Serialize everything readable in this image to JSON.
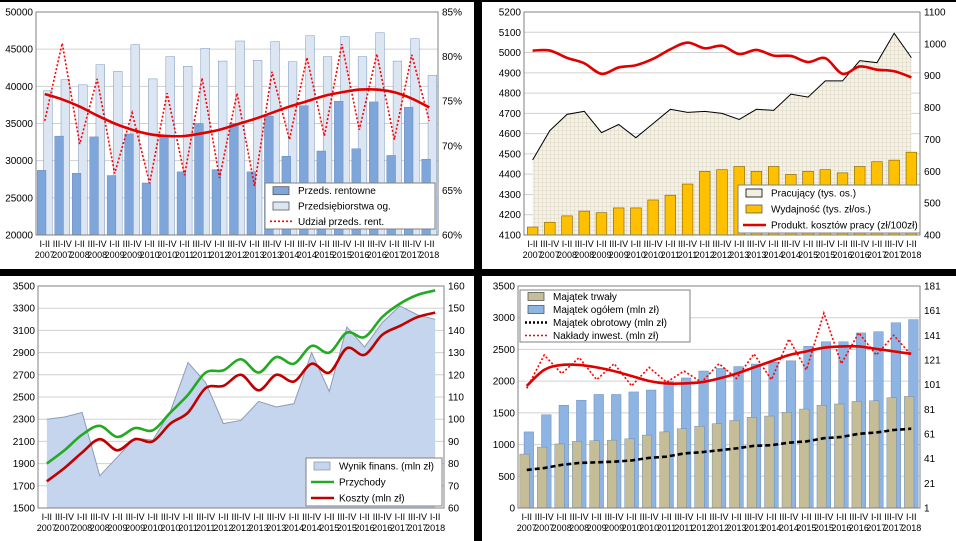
{
  "chart_data": [
    {
      "id": "p1",
      "type": "bar",
      "x_top": [
        "I-II",
        "III-IV",
        "I-II",
        "III-IV",
        "I-II",
        "III-IV",
        "I-II",
        "III-IV",
        "I-II",
        "III-IV",
        "I-II",
        "III-IV",
        "I-II",
        "III-IV",
        "I-II",
        "III-IV",
        "I-II",
        "III-IV",
        "I-II",
        "III-IV",
        "I-II",
        "III-IV",
        "I-II"
      ],
      "x_bottom": [
        "2007",
        "2007",
        "2008",
        "2008",
        "2009",
        "2009",
        "2010",
        "2010",
        "2011",
        "2011",
        "2012",
        "2012",
        "2013",
        "2013",
        "2014",
        "2014",
        "2015",
        "2015",
        "2016",
        "2016",
        "2017",
        "2017",
        "2018"
      ],
      "ylim": [
        20000,
        50000
      ],
      "y_ticks": [
        "20000",
        "25000",
        "30000",
        "35000",
        "40000",
        "45000",
        "50000"
      ],
      "y2lim": [
        60,
        85
      ],
      "y2_ticks": [
        "60%",
        "65%",
        "70%",
        "75%",
        "80%",
        "85%"
      ],
      "series": [
        {
          "name": "Przeds. rentowne",
          "kind": "bar",
          "color": "#7ea6da",
          "values": [
            28700,
            33300,
            28300,
            33200,
            28000,
            33600,
            27000,
            33400,
            28500,
            35000,
            28800,
            35000,
            28500,
            36000,
            30600,
            37400,
            31300,
            38000,
            31600,
            37900,
            30700,
            37200,
            30200
          ]
        },
        {
          "name": "Przedsiębiorstwa og.",
          "kind": "bar",
          "color": "#dce6f2",
          "values": [
            39400,
            40900,
            40200,
            42900,
            42000,
            45600,
            41000,
            44000,
            42700,
            45100,
            43400,
            46100,
            43500,
            46000,
            43300,
            46800,
            44000,
            46700,
            44000,
            47200,
            43400,
            46400,
            41500
          ]
        },
        {
          "name": "Udział przeds. rent.",
          "kind": "line",
          "color": "#ff0000",
          "dashed": true,
          "axis": "right",
          "values": [
            72.8,
            81.5,
            70.2,
            77.5,
            66.9,
            73.7,
            65.8,
            75.9,
            66.7,
            77.6,
            66.4,
            75.9,
            65.5,
            78.3,
            70.7,
            79.9,
            71.1,
            81.4,
            71.8,
            80.3,
            70.7,
            80.2,
            72.8
          ]
        },
        {
          "name": "trend",
          "kind": "line",
          "color": "#e00000",
          "thick": true,
          "axis": "right",
          "legend": false,
          "values": [
            75.8,
            75.2,
            74.4,
            73.4,
            72.5,
            71.8,
            71.3,
            71.1,
            71.1,
            71.4,
            71.8,
            72.4,
            73.0,
            73.7,
            74.4,
            75.0,
            75.6,
            76.0,
            76.3,
            76.3,
            76.0,
            75.3,
            74.3
          ]
        }
      ]
    },
    {
      "id": "p2",
      "type": "bar",
      "x_top": [
        "I-II",
        "III-IV",
        "I-II",
        "III-IV",
        "I-II",
        "III-IV",
        "I-II",
        "III-IV",
        "I-II",
        "III-IV",
        "I-II",
        "III-IV",
        "I-II",
        "III-IV",
        "I-II",
        "III-IV",
        "I-II",
        "III-IV",
        "I-II",
        "III-IV",
        "I-II",
        "III-IV",
        "I-II"
      ],
      "x_bottom": [
        "2007",
        "2007",
        "2008",
        "2008",
        "2009",
        "2009",
        "2010",
        "2010",
        "2011",
        "2011",
        "2012",
        "2012",
        "2013",
        "2013",
        "2014",
        "2014",
        "2015",
        "2015",
        "2016",
        "2016",
        "2017",
        "2017",
        "2018"
      ],
      "ylim": [
        4100,
        5200
      ],
      "y_ticks": [
        "4100",
        "4200",
        "4300",
        "4400",
        "4500",
        "4600",
        "4700",
        "4800",
        "4900",
        "5000",
        "5100",
        "5200"
      ],
      "y2lim": [
        400,
        1100
      ],
      "y2_ticks": [
        "400",
        "500",
        "600",
        "700",
        "800",
        "900",
        "1000",
        "1100"
      ],
      "series": [
        {
          "name": "Pracujący (tys. os.)",
          "kind": "area",
          "color": "#000000",
          "fill": "#f2efe2",
          "values": [
            4470,
            4615,
            4695,
            4710,
            4605,
            4645,
            4580,
            4650,
            4720,
            4705,
            4710,
            4700,
            4670,
            4720,
            4715,
            4795,
            4780,
            4860,
            4860,
            4960,
            4950,
            5095,
            4975
          ]
        },
        {
          "name": "Wydajność (tys. zł/os.)",
          "kind": "bar",
          "color": "#ffc000",
          "axis": "right",
          "values": [
            425,
            440,
            460,
            475,
            470,
            485,
            485,
            510,
            525,
            560,
            600,
            605,
            615,
            600,
            615,
            590,
            600,
            605,
            595,
            615,
            630,
            635,
            660
          ]
        },
        {
          "name": "Produkt. kosztów pracy (zł/100zł)",
          "kind": "line",
          "color": "#e00000",
          "thick": true,
          "axis": "right",
          "values": [
            979,
            979,
            956,
            939,
            906,
            926,
            933,
            953,
            983,
            1004,
            986,
            994,
            968,
            981,
            963,
            962,
            943,
            955,
            906,
            929,
            919,
            914,
            895
          ]
        }
      ]
    },
    {
      "id": "p3",
      "type": "area",
      "x_top": [
        "I-II",
        "III-IV",
        "I-II",
        "III-IV",
        "I-II",
        "III-IV",
        "I-II",
        "III-IV",
        "I-II",
        "III-IV",
        "I-II",
        "III-IV",
        "I-II",
        "III-IV",
        "I-II",
        "III-IV",
        "I-II",
        "III-IV",
        "I-II",
        "III-IV",
        "I-II",
        "III-IV",
        "I-II"
      ],
      "x_bottom": [
        "2007",
        "2007",
        "2008",
        "2008",
        "2009",
        "2009",
        "2010",
        "2010",
        "2011",
        "2011",
        "2012",
        "2012",
        "2013",
        "2013",
        "2014",
        "2014",
        "2015",
        "2015",
        "2016",
        "2016",
        "2017",
        "2017",
        "2018"
      ],
      "ylim": [
        1500,
        3500
      ],
      "y_ticks": [
        "1500",
        "1700",
        "1900",
        "2100",
        "2300",
        "2500",
        "2700",
        "2900",
        "3100",
        "3300",
        "3500"
      ],
      "y2lim": [
        60,
        160
      ],
      "y2_ticks": [
        "60",
        "70",
        "80",
        "90",
        "100",
        "110",
        "120",
        "130",
        "140",
        "150",
        "160"
      ],
      "series": [
        {
          "name": "Wynik finans. (mln zł)",
          "kind": "area",
          "color": "#8d9cb5",
          "fill": "#c6d5ee",
          "values": [
            2300,
            2320,
            2360,
            1790,
            1960,
            2130,
            2110,
            2370,
            2810,
            2630,
            2260,
            2290,
            2460,
            2410,
            2440,
            2900,
            2550,
            3130,
            2950,
            3170,
            3320,
            3240,
            3200
          ]
        },
        {
          "name": "Przychody",
          "kind": "line",
          "color": "#22aa22",
          "thick": true,
          "axis": "right",
          "values": [
            80,
            86,
            93,
            97,
            92,
            96,
            95,
            103,
            111,
            121,
            122,
            127,
            121,
            128,
            125,
            133,
            130,
            139,
            137,
            146,
            152,
            156,
            158
          ]
        },
        {
          "name": "Koszty (mln zł)",
          "kind": "line",
          "color": "#c00000",
          "thick": true,
          "axis": "right",
          "values": [
            72,
            78,
            85,
            91,
            86,
            91,
            90,
            98,
            103,
            114,
            115,
            120,
            113,
            120,
            117,
            125,
            121,
            132,
            129,
            138,
            142,
            146,
            148
          ]
        }
      ]
    },
    {
      "id": "p4",
      "type": "bar",
      "x_top": [
        "I-II",
        "III-IV",
        "I-II",
        "III-IV",
        "I-II",
        "III-IV",
        "I-II",
        "III-IV",
        "I-II",
        "III-IV",
        "I-II",
        "III-IV",
        "I-II",
        "III-IV",
        "I-II",
        "III-IV",
        "I-II",
        "III-IV",
        "I-II",
        "III-IV",
        "I-II",
        "III-IV",
        "I-II"
      ],
      "x_bottom": [
        "2007",
        "2007",
        "2008",
        "2008",
        "2009",
        "2009",
        "2010",
        "2010",
        "2011",
        "2011",
        "2012",
        "2012",
        "2013",
        "2013",
        "2014",
        "2014",
        "2015",
        "2015",
        "2016",
        "2016",
        "2017",
        "2017",
        "2018"
      ],
      "ylim": [
        0,
        3500
      ],
      "y_ticks": [
        "0",
        "500",
        "1000",
        "1500",
        "2000",
        "2500",
        "3000",
        "3500"
      ],
      "y2lim": [
        1,
        181
      ],
      "y2_ticks": [
        "1",
        "21",
        "41",
        "61",
        "81",
        "101",
        "121",
        "141",
        "161",
        "181"
      ],
      "series": [
        {
          "name": "Majątek trwały",
          "kind": "bar",
          "color": "#c4bd97",
          "front": true,
          "values": [
            850,
            960,
            1010,
            1050,
            1060,
            1070,
            1090,
            1150,
            1200,
            1250,
            1290,
            1330,
            1380,
            1430,
            1450,
            1510,
            1560,
            1620,
            1640,
            1680,
            1690,
            1740,
            1760
          ]
        },
        {
          "name": "Majątek ogółem (mln zł)",
          "kind": "bar",
          "color": "#8eb4e3",
          "values": [
            1200,
            1470,
            1620,
            1700,
            1790,
            1790,
            1830,
            1860,
            1990,
            2050,
            2160,
            2200,
            2230,
            2270,
            2300,
            2320,
            2550,
            2620,
            2620,
            2760,
            2780,
            2920,
            2970
          ]
        },
        {
          "name": "Majątek obrotowy (mln zł)",
          "kind": "line",
          "color": "#000000",
          "dashed": true,
          "thick": true,
          "values": [
            600,
            630,
            680,
            710,
            720,
            730,
            750,
            790,
            810,
            860,
            880,
            910,
            940,
            980,
            990,
            1030,
            1050,
            1100,
            1120,
            1170,
            1190,
            1230,
            1250
          ]
        },
        {
          "name": "Nakłady inwest. (mln zł)",
          "kind": "line",
          "color": "#ff0000",
          "dashed": true,
          "axis": "right",
          "values": [
            98,
            125,
            110,
            123,
            105,
            118,
            100,
            115,
            103,
            112,
            103,
            118,
            106,
            126,
            105,
            138,
            113,
            159,
            118,
            143,
            125,
            141,
            125
          ]
        },
        {
          "name": "trend",
          "kind": "line",
          "color": "#e00000",
          "thick": true,
          "axis": "right",
          "legend": false,
          "values": [
            100,
            113,
            117,
            117,
            115,
            112,
            108,
            104,
            102,
            102,
            103,
            106,
            110,
            115,
            120,
            125,
            128,
            131,
            132,
            132,
            130,
            128,
            126
          ]
        }
      ]
    }
  ]
}
